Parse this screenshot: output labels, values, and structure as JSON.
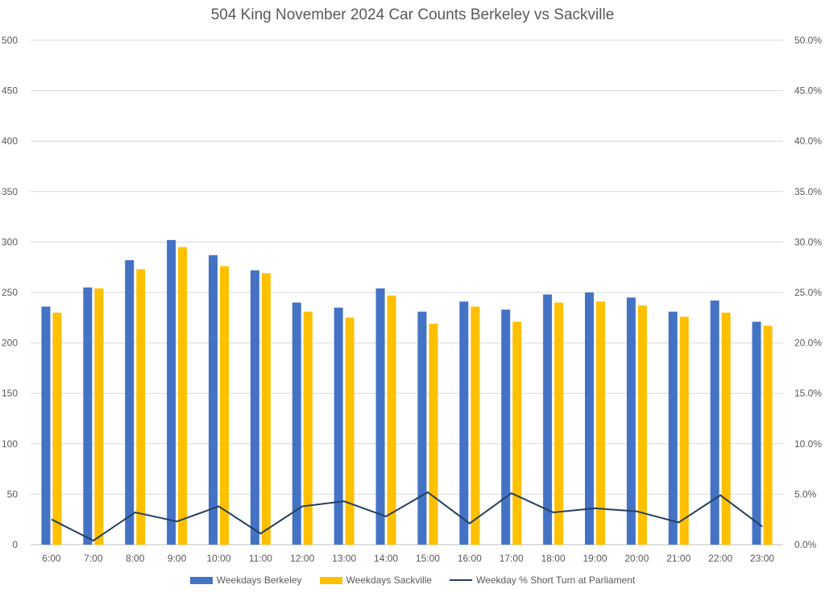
{
  "chart_data": {
    "type": "bar",
    "title": "504 King November 2024 Car Counts Berkeley vs Sackville",
    "categories": [
      "6:00",
      "7:00",
      "8:00",
      "9:00",
      "10:00",
      "11:00",
      "12:00",
      "13:00",
      "14:00",
      "15:00",
      "16:00",
      "17:00",
      "18:00",
      "19:00",
      "20:00",
      "21:00",
      "22:00",
      "23:00"
    ],
    "series": [
      {
        "name": "Weekdays Berkeley",
        "type": "bar",
        "axis": "left",
        "color": "#4472C4",
        "values": [
          236,
          255,
          282,
          302,
          287,
          272,
          240,
          235,
          254,
          231,
          241,
          233,
          248,
          250,
          245,
          231,
          242,
          221
        ]
      },
      {
        "name": "Weekdays Sackville",
        "type": "bar",
        "axis": "left",
        "color": "#FFC000",
        "values": [
          230,
          254,
          273,
          295,
          276,
          269,
          231,
          225,
          247,
          219,
          236,
          221,
          240,
          241,
          237,
          226,
          230,
          217
        ]
      },
      {
        "name": "Weekday % Short Turn at Parliament",
        "type": "line",
        "axis": "right",
        "color": "#243F60",
        "values": [
          0.025,
          0.004,
          0.032,
          0.023,
          0.038,
          0.011,
          0.038,
          0.043,
          0.028,
          0.052,
          0.021,
          0.051,
          0.032,
          0.036,
          0.033,
          0.022,
          0.049,
          0.018
        ]
      }
    ],
    "ylim": [
      0,
      500
    ],
    "y_ticks": [
      "0",
      "50",
      "100",
      "150",
      "200",
      "250",
      "300",
      "350",
      "400",
      "450",
      "500"
    ],
    "y2lim": [
      0,
      0.5
    ],
    "y2_ticks": [
      "0.0%",
      "5.0%",
      "10.0%",
      "15.0%",
      "20.0%",
      "25.0%",
      "30.0%",
      "35.0%",
      "40.0%",
      "45.0%",
      "50.0%"
    ],
    "grid": true,
    "legend_position": "bottom"
  }
}
